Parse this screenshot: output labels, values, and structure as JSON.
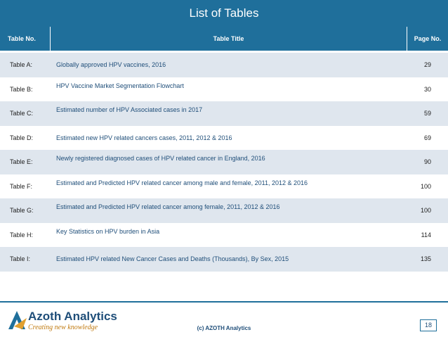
{
  "title": "List of Tables",
  "header": {
    "no": "Table No.",
    "title": "Table Title",
    "page": "Page No."
  },
  "rows": [
    {
      "no": "Table A:",
      "title": "Globally approved HPV vaccines, 2016",
      "page": "29",
      "align": "center"
    },
    {
      "no": "Table B:",
      "title": "HPV Vaccine Market Segmentation Flowchart",
      "page": "30",
      "align": "top"
    },
    {
      "no": "Table C:",
      "title": "Estimated number of HPV Associated cases in 2017",
      "page": "59",
      "align": "top"
    },
    {
      "no": "Table D:",
      "title": "Estimated new HPV related cancers cases, 2011, 2012 & 2016",
      "page": "69",
      "align": "center"
    },
    {
      "no": "Table E:",
      "title": "Newly registered diagnosed cases of HPV related cancer in England, 2016",
      "page": "90",
      "align": "top"
    },
    {
      "no": "Table F:",
      "title": "Estimated and Predicted HPV related cancer among male and female, 2011, 2012 & 2016",
      "page": "100",
      "align": "top"
    },
    {
      "no": "Table G:",
      "title": "Estimated and Predicted HPV related cancer among female, 2011, 2012 & 2016",
      "page": "100",
      "align": "top"
    },
    {
      "no": "Table H:",
      "title": "Key  Statistics on HPV burden in Asia",
      "page": "114",
      "align": "top"
    },
    {
      "no": "Table I:",
      "title": "Estimated HPV related New Cancer Cases and Deaths (Thousands), By Sex, 2015",
      "page": "135",
      "align": "center"
    }
  ],
  "footer": {
    "brand": "Azoth Analytics",
    "tagline": "Creating new knowledge",
    "copyright": "(c) AZOTH Analytics",
    "page_number": "18"
  }
}
